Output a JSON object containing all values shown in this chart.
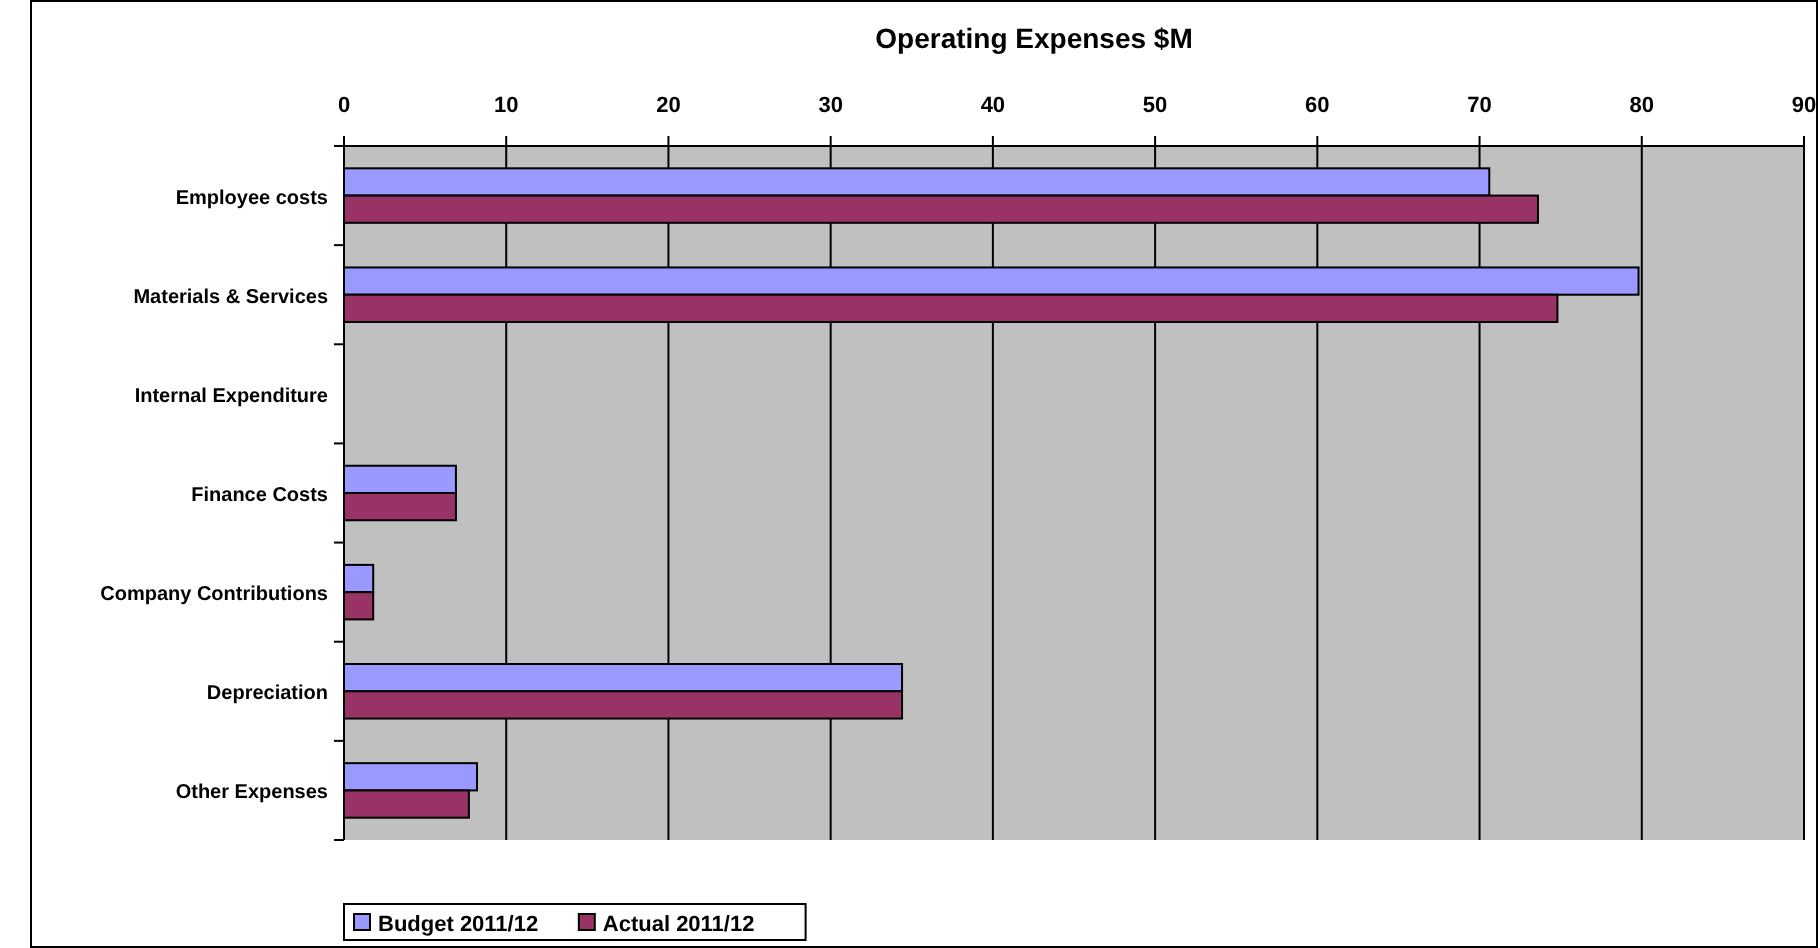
{
  "chart_data": {
    "type": "bar",
    "orientation": "horizontal",
    "title": "Operating Expenses    $M",
    "categories": [
      "Employee costs",
      "Materials & Services",
      "Internal Expenditure",
      "Finance Costs",
      "Company Contributions",
      "Depreciation",
      "Other Expenses"
    ],
    "series": [
      {
        "name": "Budget 2011/12",
        "color": "#9999ff",
        "values": [
          70.6,
          79.8,
          null,
          6.9,
          1.8,
          34.4,
          8.2
        ]
      },
      {
        "name": "Actual 2011/12",
        "color": "#993366",
        "values": [
          73.6,
          74.8,
          null,
          6.9,
          1.8,
          34.4,
          7.7
        ]
      }
    ],
    "xlim": [
      0,
      90
    ],
    "xticks": [
      0,
      10,
      20,
      30,
      40,
      50,
      60,
      70,
      80,
      90
    ],
    "grid": "x",
    "legend": "bottom left"
  }
}
